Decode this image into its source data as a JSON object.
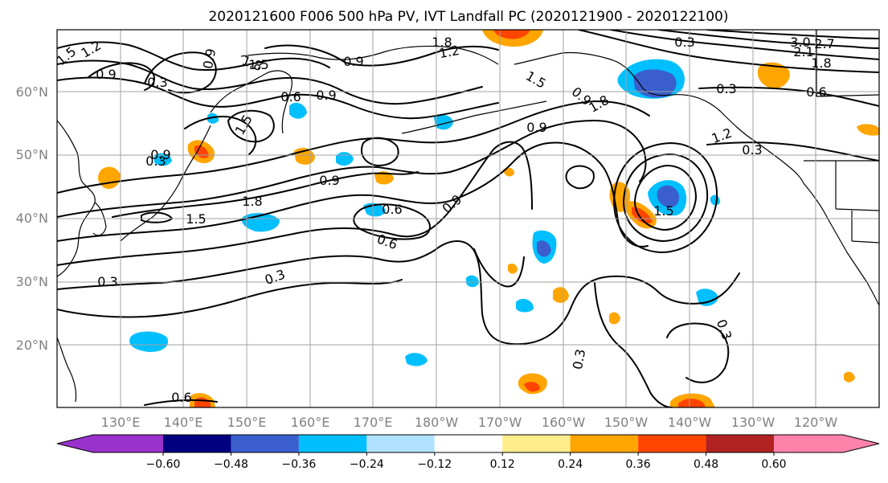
{
  "title": "2020121600 F006 500 hPa PV, IVT Landfall PC (2020121900 - 2020122100)",
  "lat_labels": [
    "60°N",
    "50°N",
    "40°N",
    "30°N",
    "20°N"
  ],
  "lon_labels": [
    "130°E",
    "140°E",
    "150°E",
    "160°E",
    "170°E",
    "180°W",
    "170°W",
    "160°W",
    "150°W",
    "140°W",
    "130°W",
    "120°W"
  ],
  "colorbar": {
    "tick_labels": [
      "−0.60",
      "−0.48",
      "−0.36",
      "−0.24",
      "−0.12",
      "0.12",
      "0.24",
      "0.36",
      "0.48",
      "0.60"
    ],
    "colors": [
      "#9932cc",
      "#000080",
      "#3a5fcd",
      "#00bfff",
      "#b0e2ff",
      "#ffffff",
      "#ffec8b",
      "#ffa500",
      "#ff4500",
      "#b22222",
      "#ff82ab"
    ]
  },
  "contour_labels": [
    "1.5",
    "1.2",
    "0.9",
    "0.3",
    "0.9",
    "1.8",
    "1.5",
    "0.9",
    "1.8",
    "1.2",
    "0.6",
    "0.9",
    "1.5",
    "0.9",
    "0.9",
    "1.8",
    "1.5",
    "0.6",
    "0.9",
    "0.6",
    "0.9",
    "1.5",
    "0.9",
    "1.2",
    "0.3",
    "0.6",
    "1.5",
    "1.8",
    "0.3",
    "3.0",
    "2.7",
    "2.1",
    "1.8",
    "0.3",
    "0.3",
    "0.3",
    "0.6",
    "0.3",
    "0.3",
    "0.3"
  ]
}
